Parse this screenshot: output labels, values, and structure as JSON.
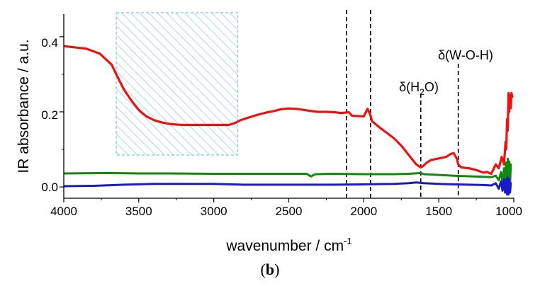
{
  "chart_data": {
    "type": "line",
    "xlabel": "wavenumber / cm",
    "xlabel_sup": "-1",
    "ylabel": "IR absorbance / a.u.",
    "xlim": [
      4000,
      1000
    ],
    "ylim": [
      -0.03,
      0.46
    ],
    "x_ticks": [
      4000,
      3500,
      3000,
      2500,
      2000,
      1500,
      1000
    ],
    "x_tick_labels": [
      "4000",
      "3500",
      "3000",
      "2500",
      "2000",
      "1500",
      "1000"
    ],
    "y_ticks": [
      0.0,
      0.2,
      0.4
    ],
    "y_tick_labels": [
      "0.0",
      "0.2",
      "0.4"
    ],
    "hatched_region": {
      "x_from": 3650,
      "x_to": 2840,
      "y_from": 0.085,
      "y_to": 0.48
    },
    "dashed_lines": [
      2115,
      1955,
      1620,
      1370
    ],
    "annotations": [
      {
        "prefix": "δ(H",
        "sub": "2",
        "suffix": "O)",
        "x": 1620,
        "y": 0.27
      },
      {
        "prefix": "δ(W-O-H)",
        "sub": "",
        "suffix": "",
        "x": 1370,
        "y": 0.36
      }
    ],
    "series": [
      {
        "name": "red",
        "color": "#ee1111",
        "x": [
          4000,
          3850,
          3760,
          3720,
          3680,
          3650,
          3600,
          3550,
          3500,
          3450,
          3400,
          3350,
          3300,
          3250,
          3200,
          3150,
          3100,
          3050,
          3000,
          2950,
          2900,
          2860,
          2820,
          2750,
          2700,
          2650,
          2600,
          2550,
          2500,
          2450,
          2400,
          2350,
          2300,
          2250,
          2200,
          2150,
          2120,
          2100,
          2080,
          2050,
          2020,
          2000,
          1985,
          1975,
          1965,
          1955,
          1945,
          1930,
          1900,
          1850,
          1800,
          1750,
          1700,
          1650,
          1620,
          1600,
          1580,
          1550,
          1500,
          1450,
          1420,
          1400,
          1380,
          1370,
          1350,
          1300,
          1250,
          1200,
          1180,
          1150,
          1120,
          1100,
          1080,
          1065,
          1055,
          1050,
          1045,
          1040,
          1035,
          1030,
          1025,
          1020,
          1015,
          1010
        ],
        "values": [
          0.375,
          0.368,
          0.355,
          0.34,
          0.325,
          0.3,
          0.26,
          0.23,
          0.205,
          0.188,
          0.178,
          0.172,
          0.168,
          0.166,
          0.165,
          0.165,
          0.165,
          0.165,
          0.165,
          0.165,
          0.165,
          0.17,
          0.178,
          0.187,
          0.193,
          0.198,
          0.202,
          0.207,
          0.209,
          0.208,
          0.205,
          0.202,
          0.2,
          0.2,
          0.199,
          0.197,
          0.198,
          0.199,
          0.19,
          0.189,
          0.188,
          0.188,
          0.2,
          0.208,
          0.2,
          0.19,
          0.175,
          0.17,
          0.16,
          0.145,
          0.13,
          0.11,
          0.085,
          0.06,
          0.052,
          0.057,
          0.065,
          0.072,
          0.076,
          0.08,
          0.088,
          0.09,
          0.075,
          0.06,
          0.052,
          0.05,
          0.045,
          0.038,
          0.04,
          0.035,
          0.06,
          0.05,
          0.08,
          0.06,
          0.12,
          0.1,
          0.18,
          0.15,
          0.25,
          0.2,
          0.245,
          0.21,
          0.25,
          0.24
        ]
      },
      {
        "name": "green",
        "color": "#118811",
        "x": [
          4000,
          3700,
          3500,
          3300,
          3000,
          2700,
          2500,
          2380,
          2360,
          2350,
          2340,
          2320,
          2200,
          2000,
          1800,
          1700,
          1620,
          1600,
          1400,
          1200,
          1150,
          1120,
          1100,
          1085,
          1075,
          1065,
          1058,
          1052,
          1046,
          1040,
          1035,
          1030,
          1025,
          1020
        ],
        "values": [
          0.036,
          0.037,
          0.036,
          0.036,
          0.035,
          0.035,
          0.035,
          0.035,
          0.03,
          0.028,
          0.031,
          0.034,
          0.035,
          0.034,
          0.034,
          0.035,
          0.037,
          0.034,
          0.03,
          0.027,
          0.026,
          0.03,
          0.018,
          0.04,
          0.01,
          0.05,
          0.0,
          0.065,
          -0.005,
          0.075,
          0.0,
          0.068,
          0.005,
          0.06
        ]
      },
      {
        "name": "blue",
        "color": "#1a1acc",
        "x": [
          4000,
          3800,
          3600,
          3400,
          3200,
          3000,
          2800,
          2600,
          2400,
          2200,
          2000,
          1800,
          1700,
          1650,
          1600,
          1500,
          1400,
          1300,
          1200,
          1150,
          1120,
          1100,
          1085,
          1075,
          1065,
          1058,
          1050,
          1045,
          1040,
          1035,
          1030,
          1025,
          1020
        ],
        "values": [
          0.002,
          0.003,
          0.006,
          0.008,
          0.008,
          0.008,
          0.006,
          0.006,
          0.006,
          0.006,
          0.007,
          0.008,
          0.01,
          0.012,
          0.01,
          0.008,
          0.007,
          0.006,
          0.005,
          0.004,
          0.01,
          -0.005,
          0.015,
          -0.01,
          0.02,
          -0.015,
          0.02,
          -0.02,
          0.025,
          -0.02,
          0.02,
          -0.015,
          0.01
        ]
      }
    ]
  },
  "caption": {
    "open": "(",
    "label": "b",
    "close": ")"
  }
}
